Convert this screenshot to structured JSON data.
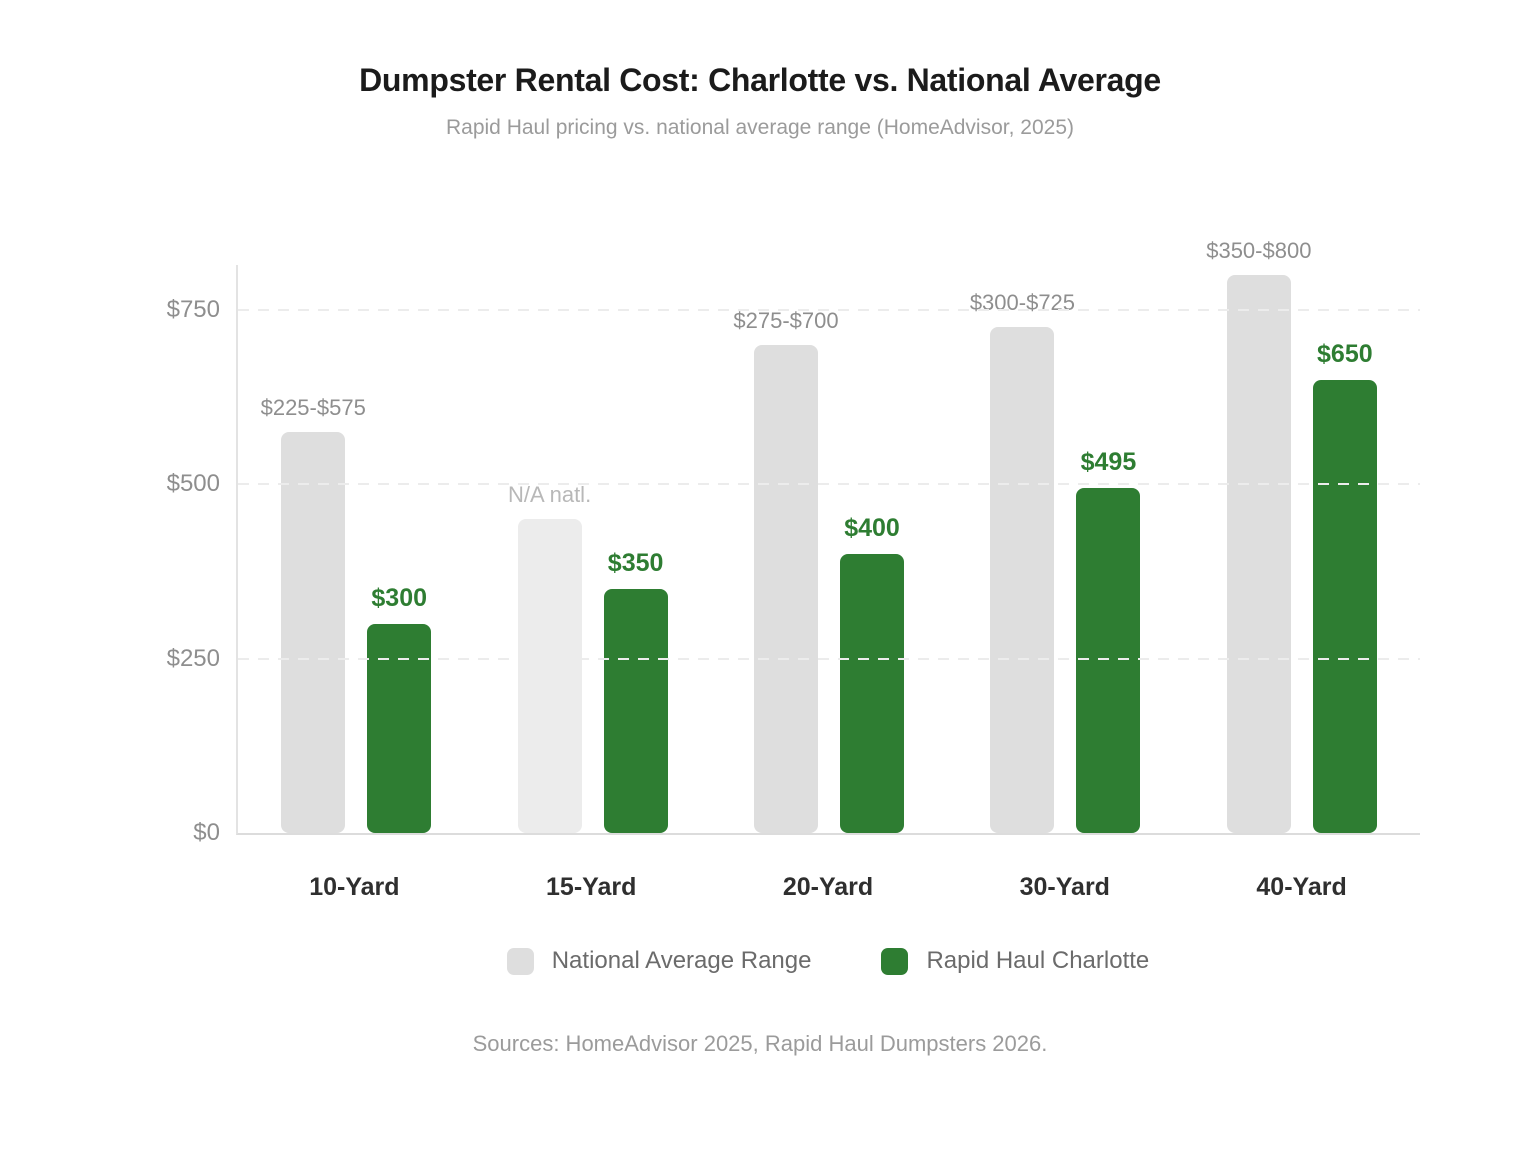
{
  "page": {
    "title": "Dumpster Rental Cost: Charlotte vs. National Average",
    "subtitle": "Rapid Haul pricing vs. national average range (HomeAdvisor, 2025)",
    "source_note": "Sources: HomeAdvisor 2025, Rapid Haul Dumpsters 2026."
  },
  "chart_data": {
    "type": "bar",
    "title": "Dumpster Rental Cost: Charlotte vs. National Average",
    "subtitle": "Rapid Haul pricing vs. national average range (HomeAdvisor, 2025)",
    "categories": [
      "10-Yard",
      "15-Yard",
      "20-Yard",
      "30-Yard",
      "40-Yard"
    ],
    "series": [
      {
        "name": "National Average Range",
        "color": "#dedede",
        "na_color": "#ececec",
        "label_color": "#8e8e8e",
        "na_label_color": "#b8b8b8",
        "values": [
          575,
          450,
          700,
          725,
          800
        ],
        "range_low": [
          225,
          null,
          275,
          300,
          350
        ],
        "range_high": [
          575,
          null,
          700,
          725,
          800
        ],
        "bar_labels": [
          "$225-$575",
          "N/A natl.",
          "$275-$700",
          "$300-$725",
          "$350-$800"
        ],
        "na_flags": [
          false,
          true,
          false,
          false,
          false
        ]
      },
      {
        "name": "Rapid Haul Charlotte",
        "color": "#2e7d32",
        "label_color": "#2e7d32",
        "values": [
          300,
          350,
          400,
          495,
          650
        ],
        "bar_labels": [
          "$300",
          "$350",
          "$400",
          "$495",
          "$650"
        ]
      }
    ],
    "xlabel": "",
    "ylabel": "",
    "ylim": [
      0,
      817
    ],
    "yticks": [
      {
        "label": "$0",
        "value": 0
      },
      {
        "label": "$250",
        "value": 250
      },
      {
        "label": "$500",
        "value": 500
      },
      {
        "label": "$750",
        "value": 750
      }
    ],
    "grid": "horizontal dashed gridlines at $250, $500, $750; solid baseline at $0",
    "legend_position": "bottom"
  }
}
